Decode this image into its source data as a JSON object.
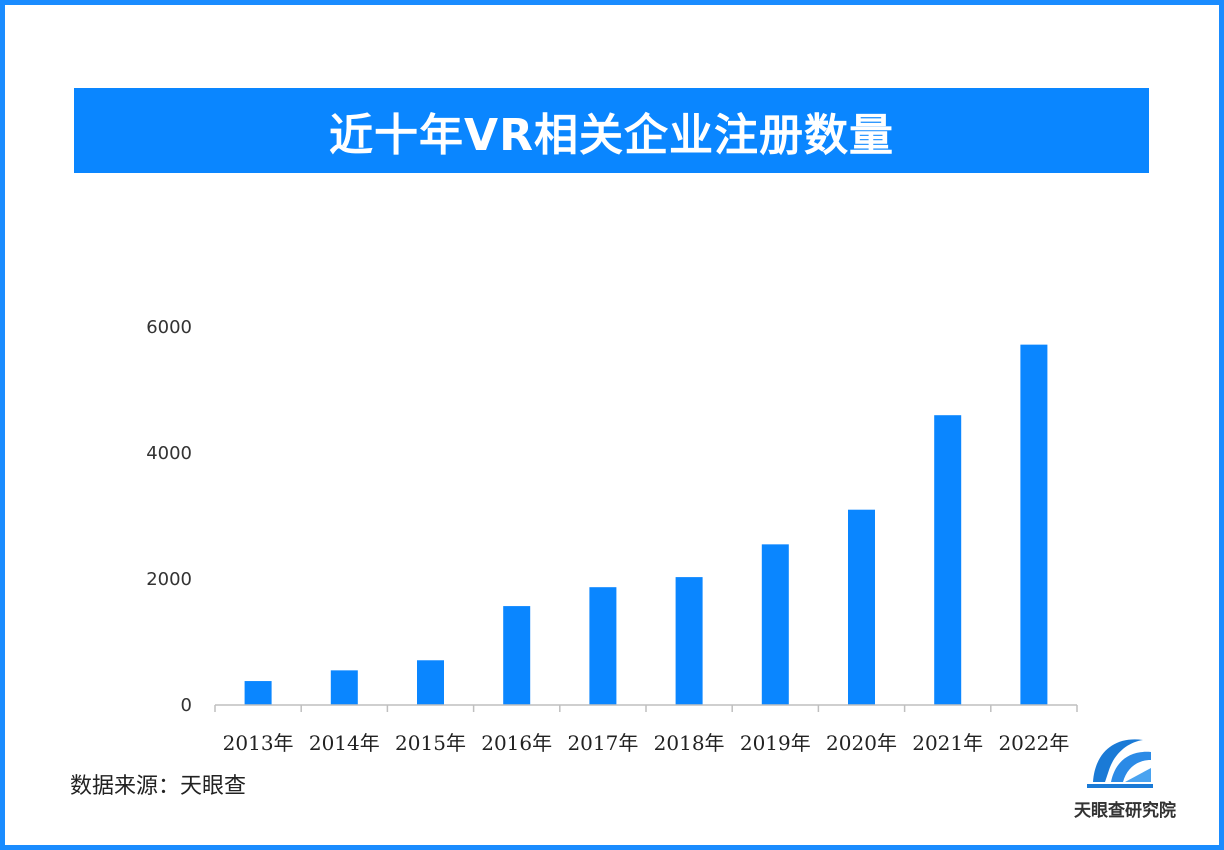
{
  "header": {
    "title": "近十年VR相关企业注册数量"
  },
  "source": {
    "label": "数据来源：天眼查"
  },
  "logo": {
    "name": "天眼查研究院",
    "icon": "tianyancha-logo-icon"
  },
  "colors": {
    "accent": "#0a86ff",
    "frame": "#1a8cff",
    "bar": "#0a86ff"
  },
  "chart_data": {
    "type": "bar",
    "categories": [
      "2013年",
      "2014年",
      "2015年",
      "2016年",
      "2017年",
      "2018年",
      "2019年",
      "2020年",
      "2021年",
      "2022年"
    ],
    "values": [
      380,
      550,
      710,
      1570,
      1870,
      2030,
      2550,
      3100,
      4600,
      5720
    ],
    "title": "近十年VR相关企业注册数量",
    "xlabel": "",
    "ylabel": "",
    "ylim": [
      0,
      6000
    ],
    "yticks": [
      0,
      2000,
      4000,
      6000
    ],
    "grid": false,
    "legend": "none"
  }
}
